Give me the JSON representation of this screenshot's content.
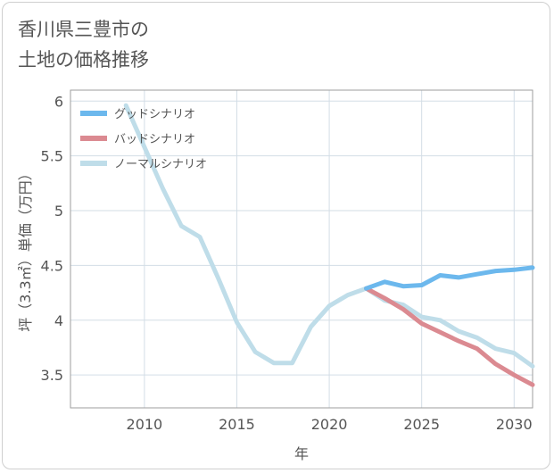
{
  "chart_data": {
    "type": "line",
    "title": "香川県三豊市の\n土地の価格推移",
    "xlabel": "年",
    "ylabel": "坪（3.3㎡）単価（万円）",
    "xlim": [
      2006,
      2031
    ],
    "ylim": [
      3.2,
      6.1
    ],
    "xticks": [
      2010,
      2015,
      2020,
      2025,
      2030
    ],
    "yticks": [
      3.5,
      4,
      4.5,
      5,
      5.5,
      6
    ],
    "ytick_labels": [
      "3.5",
      "4",
      "4.5",
      "5",
      "5.5",
      "6"
    ],
    "grid": true,
    "legend_position": "top-left",
    "series": [
      {
        "name": "グッドシナリオ",
        "color": "#6cb8ed",
        "x": [
          2022,
          2023,
          2024,
          2025,
          2026,
          2027,
          2028,
          2029,
          2030,
          2031
        ],
        "y": [
          4.29,
          4.35,
          4.31,
          4.32,
          4.41,
          4.39,
          4.42,
          4.45,
          4.46,
          4.48
        ]
      },
      {
        "name": "バッドシナリオ",
        "color": "#db8a91",
        "x": [
          2022,
          2023,
          2024,
          2025,
          2026,
          2027,
          2028,
          2029,
          2030,
          2031
        ],
        "y": [
          4.29,
          4.2,
          4.1,
          3.97,
          3.89,
          3.81,
          3.74,
          3.6,
          3.5,
          3.41
        ]
      },
      {
        "name": "ノーマルシナリオ",
        "color": "#bfdde9",
        "x": [
          2009,
          2010,
          2011,
          2012,
          2013,
          2014,
          2015,
          2016,
          2017,
          2018,
          2019,
          2020,
          2021,
          2022,
          2023,
          2024,
          2025,
          2026,
          2027,
          2028,
          2029,
          2030,
          2031
        ],
        "y": [
          5.96,
          5.58,
          5.2,
          4.86,
          4.76,
          4.38,
          3.98,
          3.71,
          3.61,
          3.61,
          3.94,
          4.13,
          4.23,
          4.29,
          4.18,
          4.14,
          4.03,
          4.0,
          3.9,
          3.84,
          3.74,
          3.7,
          3.58
        ]
      }
    ]
  }
}
